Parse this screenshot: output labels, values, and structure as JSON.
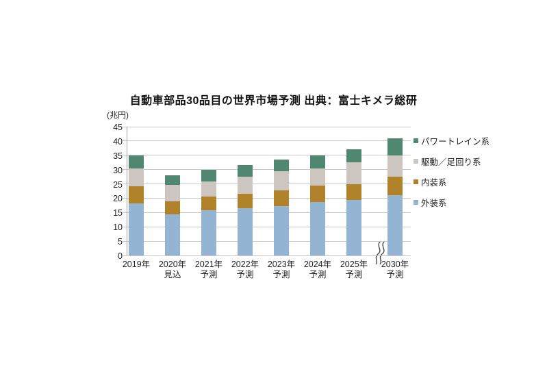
{
  "title": "自動車部品30品目の世界市場予測 出典：富士キメラ総研",
  "y_axis": {
    "unit": "(兆円)",
    "ticks": [
      "45",
      "40",
      "35",
      "30",
      "25",
      "20",
      "15",
      "10",
      "5",
      "0"
    ]
  },
  "chart_data": {
    "type": "bar",
    "stacked": true,
    "title": "自動車部品30品目の世界市場予測 出典：富士キメラ総研",
    "unit": "兆円",
    "ylim": [
      0,
      45
    ],
    "ytick_step": 5,
    "grid": true,
    "legend_position": "right",
    "categories": [
      {
        "line1": "2019年",
        "line2": ""
      },
      {
        "line1": "2020年",
        "line2": "見込"
      },
      {
        "line1": "2021年",
        "line2": "予測"
      },
      {
        "line1": "2022年",
        "line2": "予測"
      },
      {
        "line1": "2023年",
        "line2": "予測"
      },
      {
        "line1": "2024年",
        "line2": "予測"
      },
      {
        "line1": "2025年",
        "line2": "予測"
      },
      {
        "line1": "2030年",
        "line2": "予測"
      }
    ],
    "axis_break_between": [
      "2025年予測",
      "2030年予測"
    ],
    "series": [
      {
        "name": "外装系",
        "color": "#93b5d3",
        "values": [
          18.3,
          14.4,
          15.9,
          16.5,
          17.2,
          18.6,
          19.5,
          21.0
        ]
      },
      {
        "name": "内装系",
        "color": "#b0832a",
        "values": [
          5.9,
          4.6,
          4.7,
          5.0,
          5.6,
          5.8,
          5.5,
          6.5
        ]
      },
      {
        "name": "駆動／足回り系",
        "color": "#cdc6c0",
        "values": [
          6.2,
          5.6,
          5.3,
          6.0,
          6.7,
          6.0,
          7.5,
          7.5
        ]
      },
      {
        "name": "パワートレイン系",
        "color": "#4f8770",
        "values": [
          4.6,
          3.4,
          4.1,
          4.0,
          4.0,
          4.6,
          4.5,
          6.0
        ]
      }
    ],
    "totals": [
      35.0,
      28.0,
      30.0,
      31.5,
      33.5,
      35.0,
      37.0,
      41.0
    ],
    "legend": [
      "パワートレイン系",
      "駆動／足回り系",
      "内装系",
      "外装系"
    ],
    "colors": {
      "gridline": "#c8c8c8",
      "axis": "#a0a0a0",
      "text": "#1f1f1f"
    }
  }
}
